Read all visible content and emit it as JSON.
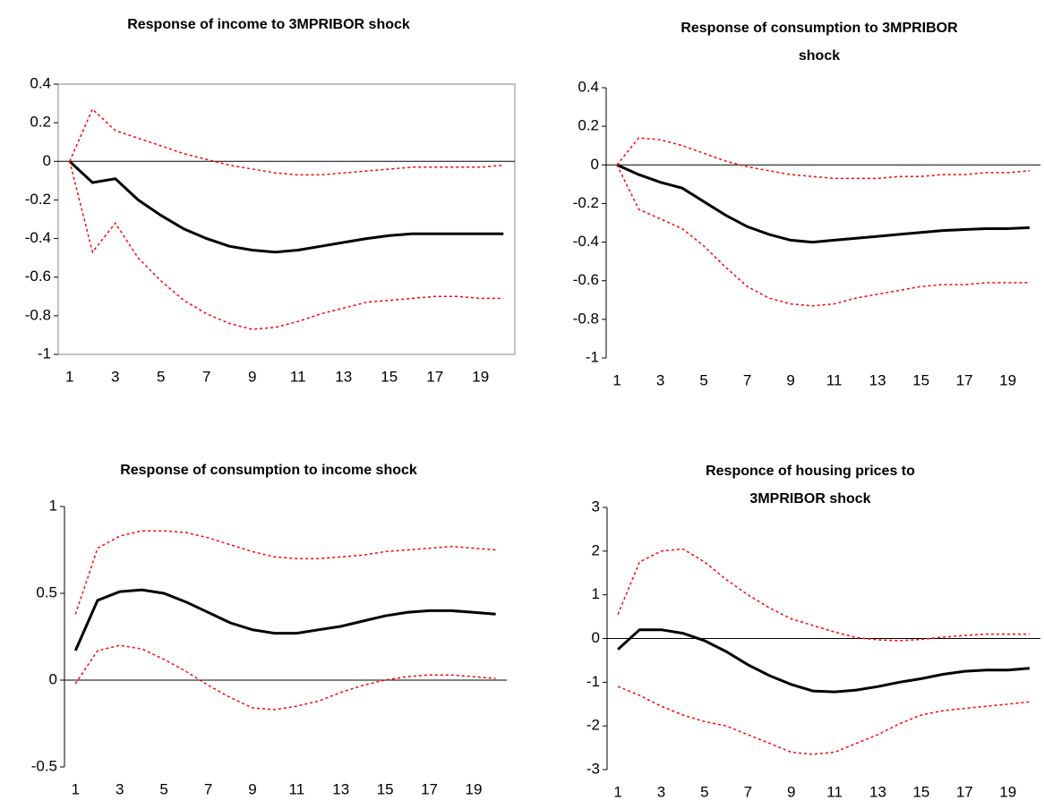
{
  "chart_data": [
    {
      "type": "line",
      "title": "Response of income to 3MPRIBOR shock",
      "categories": [
        "1",
        null,
        "3",
        null,
        "5",
        null,
        "7",
        null,
        "9",
        null,
        "11",
        null,
        "13",
        null,
        "15",
        null,
        "17",
        null,
        "19",
        null
      ],
      "series": [
        {
          "color": "#000000",
          "dash": false,
          "values": [
            0,
            -0.11,
            -0.09,
            -0.2,
            -0.28,
            -0.35,
            -0.4,
            -0.44,
            -0.46,
            -0.47,
            -0.46,
            -0.44,
            -0.42,
            -0.4,
            -0.385,
            -0.375,
            -0.375,
            -0.375,
            -0.375,
            -0.375
          ]
        },
        {
          "color": "#ff0000",
          "dash": true,
          "values": [
            0,
            0.27,
            0.16,
            0.12,
            0.08,
            0.04,
            0.01,
            -0.02,
            -0.04,
            -0.06,
            -0.07,
            -0.07,
            -0.06,
            -0.05,
            -0.04,
            -0.03,
            -0.03,
            -0.03,
            -0.03,
            -0.02
          ]
        },
        {
          "color": "#ff0000",
          "dash": true,
          "values": [
            0,
            -0.47,
            -0.32,
            -0.5,
            -0.62,
            -0.72,
            -0.79,
            -0.84,
            -0.87,
            -0.86,
            -0.83,
            -0.79,
            -0.76,
            -0.73,
            -0.72,
            -0.71,
            -0.7,
            -0.7,
            -0.71,
            -0.71
          ]
        }
      ],
      "ylim": [
        -1,
        0.4
      ],
      "yticks": [
        -1,
        -0.8,
        -0.6,
        -0.4,
        -0.2,
        0,
        0.2,
        0.4
      ],
      "frame": true
    },
    {
      "type": "line",
      "title": "Response of consumption to 3MPRIBOR shock",
      "categories": [
        "1",
        null,
        "3",
        null,
        "5",
        null,
        "7",
        null,
        "9",
        null,
        "11",
        null,
        "13",
        null,
        "15",
        null,
        "17",
        null,
        "19",
        null
      ],
      "series": [
        {
          "color": "#000000",
          "dash": false,
          "values": [
            0,
            -0.05,
            -0.09,
            -0.12,
            -0.19,
            -0.26,
            -0.32,
            -0.36,
            -0.39,
            -0.4,
            -0.39,
            -0.38,
            -0.37,
            -0.36,
            -0.35,
            -0.34,
            -0.335,
            -0.33,
            -0.33,
            -0.325
          ]
        },
        {
          "color": "#ff0000",
          "dash": true,
          "values": [
            0,
            0.14,
            0.13,
            0.1,
            0.06,
            0.02,
            -0.01,
            -0.03,
            -0.05,
            -0.06,
            -0.07,
            -0.07,
            -0.07,
            -0.06,
            -0.06,
            -0.05,
            -0.05,
            -0.04,
            -0.04,
            -0.03
          ]
        },
        {
          "color": "#ff0000",
          "dash": true,
          "values": [
            0,
            -0.23,
            -0.28,
            -0.33,
            -0.42,
            -0.53,
            -0.63,
            -0.69,
            -0.72,
            -0.73,
            -0.72,
            -0.69,
            -0.67,
            -0.65,
            -0.63,
            -0.62,
            -0.62,
            -0.61,
            -0.61,
            -0.61
          ]
        }
      ],
      "ylim": [
        -1,
        0.4
      ],
      "yticks": [
        -1,
        -0.8,
        -0.6,
        -0.4,
        -0.2,
        0,
        0.2,
        0.4
      ],
      "frame": false
    },
    {
      "type": "line",
      "title": "Response of consumption to income shock",
      "categories": [
        "1",
        null,
        "3",
        null,
        "5",
        null,
        "7",
        null,
        "9",
        null,
        "11",
        null,
        "13",
        null,
        "15",
        null,
        "17",
        null,
        "19",
        null
      ],
      "series": [
        {
          "color": "#000000",
          "dash": false,
          "values": [
            0.17,
            0.46,
            0.51,
            0.52,
            0.5,
            0.45,
            0.39,
            0.33,
            0.29,
            0.27,
            0.27,
            0.29,
            0.31,
            0.34,
            0.37,
            0.39,
            0.4,
            0.4,
            0.39,
            0.38
          ]
        },
        {
          "color": "#ff0000",
          "dash": true,
          "values": [
            0.38,
            0.76,
            0.83,
            0.86,
            0.86,
            0.85,
            0.82,
            0.78,
            0.74,
            0.71,
            0.7,
            0.7,
            0.71,
            0.72,
            0.74,
            0.75,
            0.76,
            0.77,
            0.76,
            0.75
          ]
        },
        {
          "color": "#ff0000",
          "dash": true,
          "values": [
            -0.02,
            0.17,
            0.2,
            0.18,
            0.12,
            0.05,
            -0.03,
            -0.1,
            -0.16,
            -0.17,
            -0.15,
            -0.12,
            -0.07,
            -0.03,
            0.0,
            0.02,
            0.03,
            0.03,
            0.02,
            0.01
          ]
        }
      ],
      "ylim": [
        -0.5,
        1
      ],
      "yticks": [
        -0.5,
        0,
        0.5,
        1
      ],
      "frame": false
    },
    {
      "type": "line",
      "title": "Responce of housing prices to 3MPRIBOR shock",
      "categories": [
        "1",
        null,
        "3",
        null,
        "5",
        null,
        "7",
        null,
        "9",
        null,
        "11",
        null,
        "13",
        null,
        "15",
        null,
        "17",
        null,
        "19",
        null
      ],
      "series": [
        {
          "color": "#000000",
          "dash": false,
          "values": [
            -0.25,
            0.2,
            0.2,
            0.12,
            -0.05,
            -0.3,
            -0.6,
            -0.85,
            -1.05,
            -1.2,
            -1.22,
            -1.18,
            -1.1,
            -1.0,
            -0.92,
            -0.82,
            -0.75,
            -0.72,
            -0.72,
            -0.68
          ]
        },
        {
          "color": "#ff0000",
          "dash": true,
          "values": [
            0.55,
            1.75,
            2.0,
            2.05,
            1.75,
            1.35,
            1.0,
            0.7,
            0.45,
            0.3,
            0.15,
            0.02,
            -0.03,
            -0.05,
            -0.02,
            0.03,
            0.07,
            0.1,
            0.1,
            0.1
          ]
        },
        {
          "color": "#ff0000",
          "dash": true,
          "values": [
            -1.1,
            -1.3,
            -1.55,
            -1.75,
            -1.9,
            -2.0,
            -2.2,
            -2.4,
            -2.6,
            -2.65,
            -2.6,
            -2.4,
            -2.2,
            -1.95,
            -1.75,
            -1.65,
            -1.6,
            -1.55,
            -1.5,
            -1.45
          ]
        }
      ],
      "ylim": [
        -3,
        3
      ],
      "yticks": [
        -3,
        -2,
        -1,
        0,
        1,
        2,
        3
      ],
      "frame": false
    }
  ]
}
